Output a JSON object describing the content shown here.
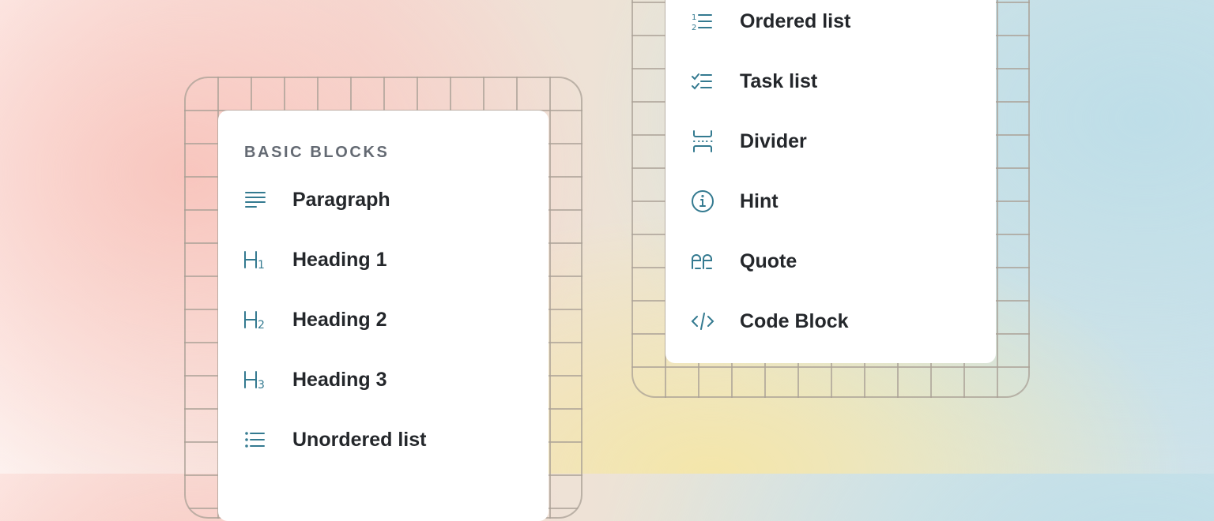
{
  "left_menu": {
    "section_title": "BASIC BLOCKS",
    "items": [
      {
        "label": "Paragraph",
        "icon": "paragraph-icon"
      },
      {
        "label": "Heading 1",
        "icon": "heading-1-icon"
      },
      {
        "label": "Heading 2",
        "icon": "heading-2-icon"
      },
      {
        "label": "Heading 3",
        "icon": "heading-3-icon"
      },
      {
        "label": "Unordered list",
        "icon": "unordered-list-icon"
      }
    ]
  },
  "right_menu": {
    "items": [
      {
        "label": "Ordered list",
        "icon": "ordered-list-icon"
      },
      {
        "label": "Task list",
        "icon": "task-list-icon"
      },
      {
        "label": "Divider",
        "icon": "divider-icon"
      },
      {
        "label": "Hint",
        "icon": "info-icon"
      },
      {
        "label": "Quote",
        "icon": "quote-icon"
      },
      {
        "label": "Code Block",
        "icon": "code-icon"
      }
    ]
  },
  "colors": {
    "icon": "#347a90",
    "text": "#24272b",
    "section_title": "#646a73"
  }
}
